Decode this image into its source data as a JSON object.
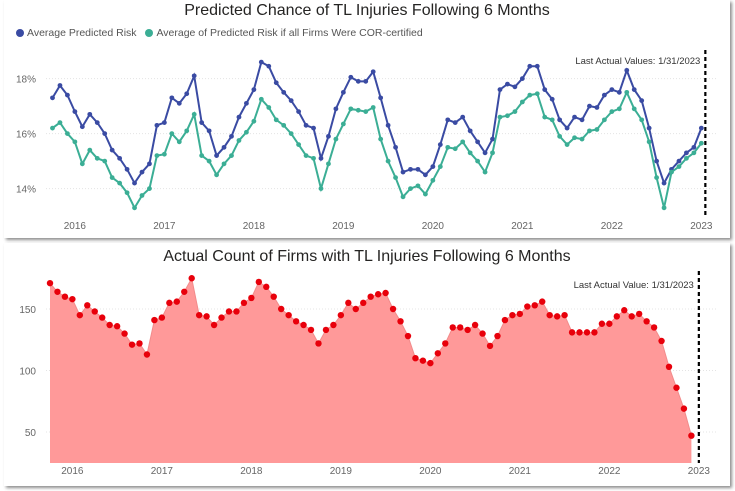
{
  "chart_data": [
    {
      "type": "line",
      "title": "Predicted Chance of TL Injuries Following 6 Months",
      "xlabel": "",
      "ylabel": "",
      "x_ticks": [
        "2016",
        "2017",
        "2018",
        "2019",
        "2020",
        "2021",
        "2022",
        "2023"
      ],
      "y_ticks": [
        "14%",
        "16%",
        "18%"
      ],
      "ylim": [
        13,
        19
      ],
      "x_start": "2015-10",
      "annotation": "Last Actual Values: 1/31/2023",
      "annotation_x": "2023-01",
      "legend_position": "top-left",
      "series": [
        {
          "name": "Average Predicted Risk",
          "color": "#3A4BA3",
          "values": [
            17.3,
            17.75,
            17.4,
            16.8,
            16.25,
            16.7,
            16.4,
            16.0,
            15.4,
            15.1,
            14.7,
            14.2,
            14.6,
            14.9,
            16.3,
            16.4,
            17.3,
            17.1,
            17.45,
            18.1,
            16.4,
            16.1,
            15.2,
            15.5,
            15.9,
            16.6,
            17.1,
            17.6,
            18.6,
            18.45,
            17.85,
            17.5,
            17.2,
            16.8,
            16.3,
            16.2,
            15.1,
            15.9,
            16.9,
            17.5,
            18.05,
            17.9,
            17.9,
            18.25,
            17.3,
            16.3,
            15.5,
            14.6,
            14.7,
            14.7,
            14.5,
            14.8,
            15.6,
            16.5,
            16.4,
            16.6,
            16.1,
            15.7,
            15.3,
            15.8,
            17.6,
            17.8,
            17.7,
            18.0,
            18.45,
            18.45,
            17.6,
            17.25,
            16.5,
            16.2,
            16.6,
            16.5,
            17.0,
            16.95,
            17.4,
            17.6,
            17.5,
            18.3,
            17.6,
            17.2,
            16.2,
            15.0,
            14.2,
            14.7,
            15.0,
            15.3,
            15.5,
            16.2
          ]
        },
        {
          "name": "Average of Predicted Risk if all Firms Were COR-certified",
          "color": "#3BAE95",
          "values": [
            16.2,
            16.4,
            16.0,
            15.7,
            14.9,
            15.4,
            15.1,
            15.0,
            14.4,
            14.2,
            13.85,
            13.3,
            13.75,
            14.0,
            15.2,
            15.25,
            16.0,
            15.7,
            16.1,
            16.7,
            15.2,
            15.0,
            14.5,
            14.9,
            15.2,
            15.75,
            16.05,
            16.45,
            17.25,
            16.95,
            16.5,
            16.3,
            16.0,
            15.6,
            15.2,
            15.1,
            14.0,
            14.9,
            15.8,
            16.35,
            16.9,
            16.85,
            16.8,
            16.95,
            15.8,
            15.0,
            14.4,
            13.7,
            14.0,
            14.1,
            13.8,
            14.3,
            14.8,
            15.5,
            15.45,
            15.7,
            15.3,
            15.0,
            14.6,
            15.3,
            16.6,
            16.65,
            16.8,
            17.15,
            17.4,
            17.45,
            16.6,
            16.5,
            15.9,
            15.6,
            15.85,
            15.8,
            16.1,
            16.15,
            16.5,
            16.8,
            16.9,
            17.5,
            16.9,
            16.5,
            15.7,
            14.4,
            13.3,
            14.6,
            14.8,
            15.1,
            15.3,
            15.65
          ]
        }
      ]
    },
    {
      "type": "area",
      "title": "Actual Count of Firms with TL Injuries Following 6 Months",
      "xlabel": "",
      "ylabel": "",
      "x_ticks": [
        "2016",
        "2017",
        "2018",
        "2019",
        "2020",
        "2021",
        "2022",
        "2023"
      ],
      "y_ticks": [
        "50",
        "100",
        "150"
      ],
      "ylim": [
        25,
        182
      ],
      "x_start": "2015-10",
      "annotation": "Last Actual Value: 1/31/2023",
      "annotation_x": "2023-01",
      "series": [
        {
          "name": "Actual Count of Firms with TL Injuries Following 6 Months",
          "color": "#E8000B",
          "fill": "#FF9999",
          "values": [
            171,
            164,
            160,
            158,
            145,
            153,
            148,
            143,
            137,
            136,
            130,
            121,
            122,
            113,
            141,
            143,
            155,
            156,
            164,
            175,
            145,
            144,
            137,
            143,
            148,
            148,
            155,
            159,
            172,
            168,
            160,
            150,
            145,
            140,
            137,
            133,
            122,
            133,
            137,
            145,
            155,
            150,
            155,
            160,
            162,
            163,
            150,
            140,
            128,
            110,
            108,
            106,
            114,
            122,
            135,
            135,
            133,
            137,
            130,
            120,
            128,
            141,
            145,
            146,
            152,
            153,
            156,
            145,
            144,
            145,
            131,
            131,
            131,
            131,
            138,
            138,
            144,
            149,
            144,
            146,
            140,
            135,
            124,
            103,
            86,
            69,
            47
          ]
        }
      ]
    }
  ]
}
